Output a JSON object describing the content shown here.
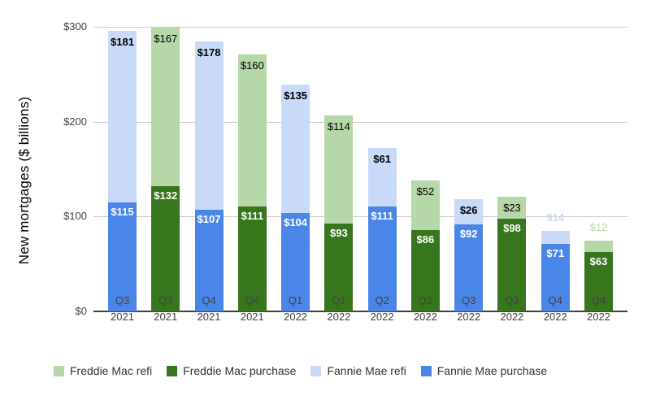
{
  "chart_data": {
    "type": "bar",
    "subtype": "stacked-paired-columns",
    "title": "",
    "ylabel": "New mortgages ($ billions)",
    "ylim": [
      0,
      300
    ],
    "grid": true,
    "legend_position": "bottom-left",
    "yticks": [
      {
        "value": 0,
        "label": "$0"
      },
      {
        "value": 100,
        "label": "$100"
      },
      {
        "value": 200,
        "label": "$200"
      },
      {
        "value": 300,
        "label": "$300"
      }
    ],
    "bars": [
      {
        "quarter": "Q3",
        "year": "2021",
        "entity": "fannie",
        "refi": 181,
        "refi_label": "$181",
        "purchase": 115,
        "purchase_label": "$115"
      },
      {
        "quarter": "Q3",
        "year": "2021",
        "entity": "freddie",
        "refi": 167,
        "refi_label": "$167",
        "purchase": 132,
        "purchase_label": "$132"
      },
      {
        "quarter": "Q4",
        "year": "2021",
        "entity": "fannie",
        "refi": 178,
        "refi_label": "$178",
        "purchase": 107,
        "purchase_label": "$107"
      },
      {
        "quarter": "Q4",
        "year": "2021",
        "entity": "freddie",
        "refi": 160,
        "refi_label": "$160",
        "purchase": 111,
        "purchase_label": "$111"
      },
      {
        "quarter": "Q1",
        "year": "2022",
        "entity": "fannie",
        "refi": 135,
        "refi_label": "$135",
        "purchase": 104,
        "purchase_label": "$104"
      },
      {
        "quarter": "Q1",
        "year": "2022",
        "entity": "freddie",
        "refi": 114,
        "refi_label": "$114",
        "purchase": 93,
        "purchase_label": "$93"
      },
      {
        "quarter": "Q2",
        "year": "2022",
        "entity": "fannie",
        "refi": 61,
        "refi_label": "$61",
        "purchase": 111,
        "purchase_label": "$111"
      },
      {
        "quarter": "Q2",
        "year": "2022",
        "entity": "freddie",
        "refi": 52,
        "refi_label": "$52",
        "purchase": 86,
        "purchase_label": "$86"
      },
      {
        "quarter": "Q3",
        "year": "2022",
        "entity": "fannie",
        "refi": 26,
        "refi_label": "$26",
        "purchase": 92,
        "purchase_label": "$92"
      },
      {
        "quarter": "Q3",
        "year": "2022",
        "entity": "freddie",
        "refi": 23,
        "refi_label": "$23",
        "purchase": 98,
        "purchase_label": "$98"
      },
      {
        "quarter": "Q4",
        "year": "2022",
        "entity": "fannie",
        "refi": 14,
        "refi_label": "$14",
        "purchase": 71,
        "purchase_label": "$71"
      },
      {
        "quarter": "Q4",
        "year": "2022",
        "entity": "freddie",
        "refi": 12,
        "refi_label": "$12",
        "purchase": 63,
        "purchase_label": "$63"
      }
    ],
    "legend": [
      {
        "label": "Freddie Mac refi",
        "color_key": "freddie_refi"
      },
      {
        "label": "Freddie Mac purchase",
        "color_key": "freddie_purchase"
      },
      {
        "label": "Fannie Mae refi",
        "color_key": "fannie_refi"
      },
      {
        "label": "Fannie Mae purchase",
        "color_key": "fannie_purchase"
      }
    ],
    "colors": {
      "fannie_purchase": "#4a86e8",
      "fannie_refi": "#c9daf8",
      "freddie_purchase": "#38761d",
      "freddie_refi": "#b6d7a8",
      "gridline": "#cccccc",
      "axis_line": "#424242",
      "tick_text": "#424242",
      "label_on_refi": "#000000",
      "label_on_purchase": "#ffffff"
    }
  }
}
